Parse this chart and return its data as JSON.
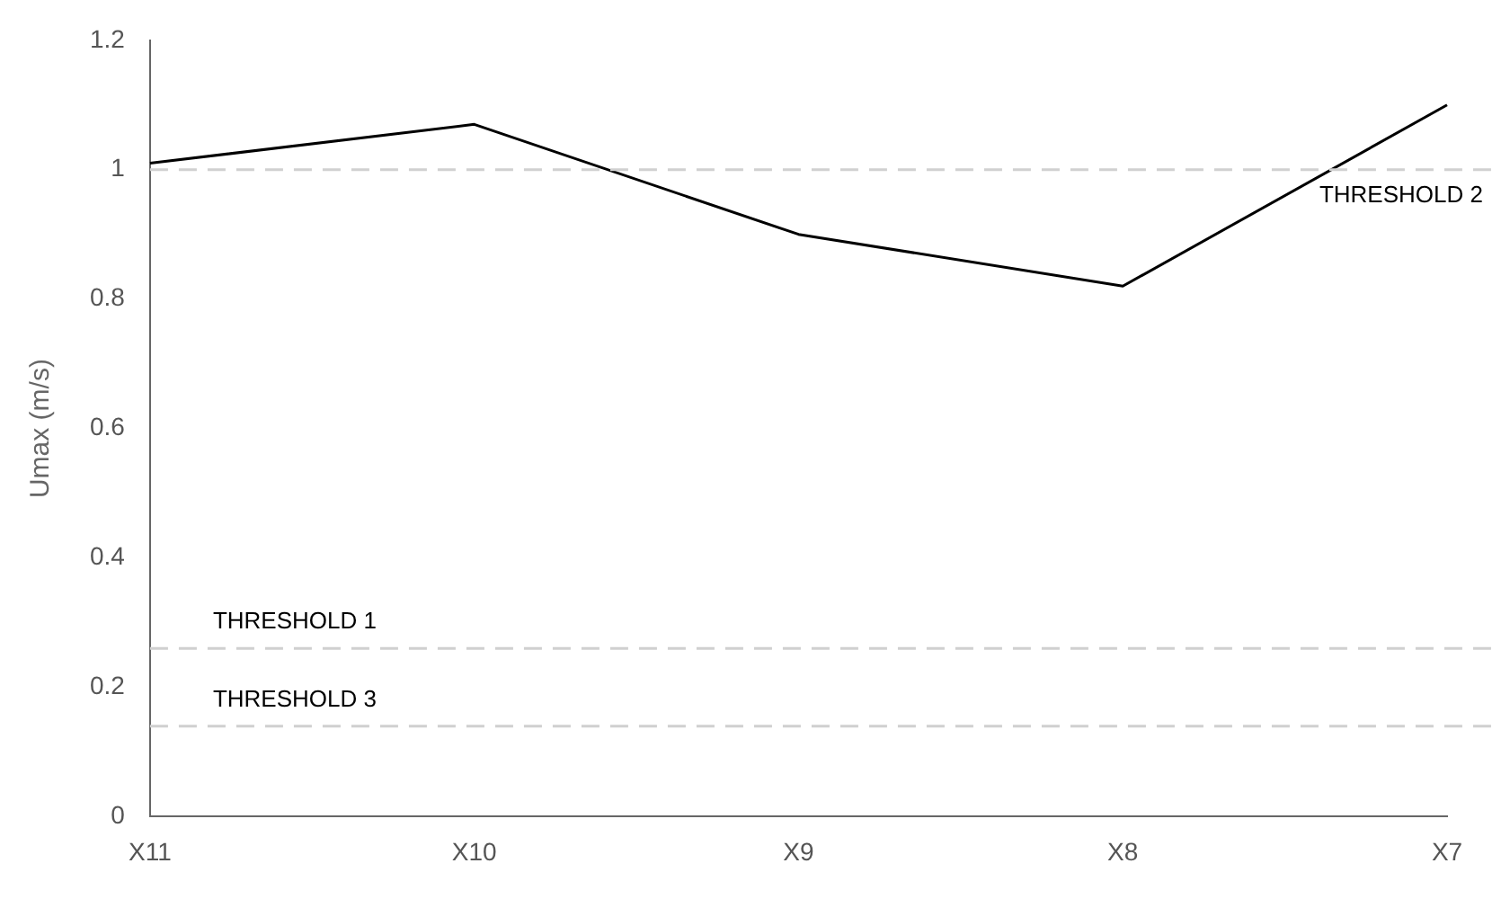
{
  "chart_data": {
    "type": "line",
    "ylabel": "Umax (m/s)",
    "categories": [
      "X11",
      "X10",
      "X9",
      "X8",
      "X7"
    ],
    "series": [
      {
        "color": "#000000",
        "values": [
          1.01,
          1.07,
          0.9,
          0.82,
          1.1
        ]
      }
    ],
    "ylim": [
      0,
      1.2
    ],
    "yticks": [
      0,
      0.2,
      0.4,
      0.6,
      0.8,
      1,
      1.2
    ],
    "grid": false,
    "legend": false,
    "marker": "none",
    "line_style": "solid",
    "ref_lines": [
      {
        "axis": "y",
        "value": 0.26,
        "label": "THRESHOLD 1",
        "color": "#d0d0d0",
        "line_style": "dashed"
      },
      {
        "axis": "y",
        "value": 1.0,
        "label": "THRESHOLD 2",
        "color": "#d0d0d0",
        "line_style": "dashed"
      },
      {
        "axis": "y",
        "value": 0.14,
        "label": "THRESHOLD 3",
        "color": "#d0d0d0",
        "line_style": "dashed"
      }
    ]
  }
}
